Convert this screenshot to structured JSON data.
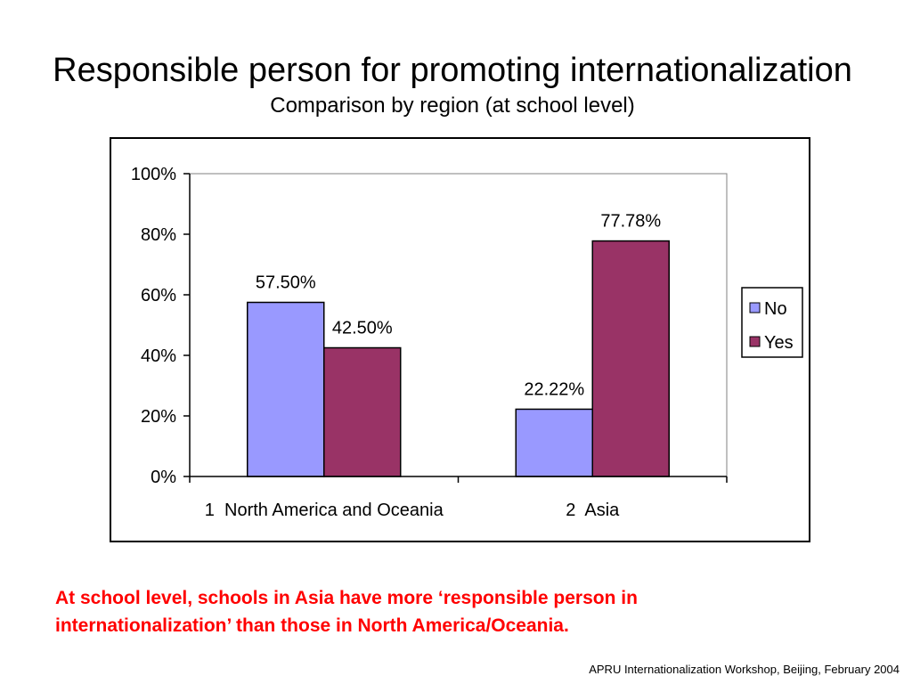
{
  "slide": {
    "title": "Responsible person for promoting internationalization",
    "subtitle": "Comparison by region (at school level)",
    "note_line1": "At school level, schools in Asia have more ‘responsible person in",
    "note_line2": "internationalization’ than those in North America/Oceania.",
    "footer": "APRU Internationalization Workshop, Beijing, February 2004"
  },
  "chart_data": {
    "type": "bar",
    "categories": [
      "1  North America and Oceania",
      "2  Asia"
    ],
    "series": [
      {
        "name": "No",
        "values": [
          57.5,
          22.22
        ],
        "labels": [
          "57.50%",
          "22.22%"
        ],
        "color": "#9999ff"
      },
      {
        "name": "Yes",
        "values": [
          42.5,
          77.78
        ],
        "labels": [
          "42.50%",
          "77.78%"
        ],
        "color": "#993366"
      }
    ],
    "ylim": [
      0,
      100
    ],
    "yticks": [
      "0%",
      "20%",
      "40%",
      "60%",
      "80%",
      "100%"
    ],
    "ytick_values": [
      0,
      20,
      40,
      60,
      80,
      100
    ],
    "grid": false,
    "legend": "right"
  }
}
